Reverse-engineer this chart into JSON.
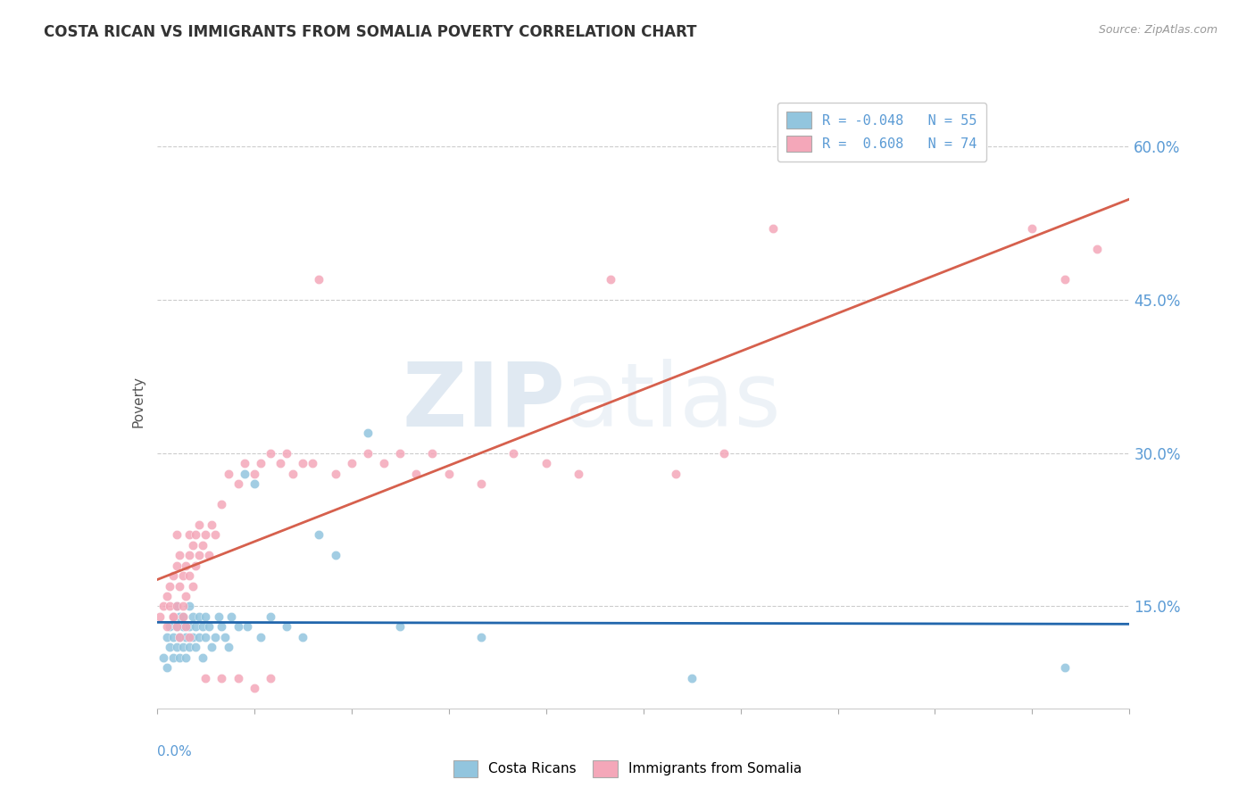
{
  "title": "COSTA RICAN VS IMMIGRANTS FROM SOMALIA POVERTY CORRELATION CHART",
  "source": "Source: ZipAtlas.com",
  "ylabel": "Poverty",
  "yticks": [
    "15.0%",
    "30.0%",
    "45.0%",
    "60.0%"
  ],
  "ytick_vals": [
    0.15,
    0.3,
    0.45,
    0.6
  ],
  "xlim": [
    0.0,
    0.3
  ],
  "ylim": [
    0.05,
    0.65
  ],
  "color_blue": "#92c5de",
  "color_pink": "#f4a7b9",
  "color_line_blue": "#2166ac",
  "color_line_pink": "#d6604d",
  "watermark_zip": "ZIP",
  "watermark_atlas": "atlas",
  "blue_scatter_x": [
    0.002,
    0.003,
    0.003,
    0.004,
    0.004,
    0.005,
    0.005,
    0.005,
    0.006,
    0.006,
    0.006,
    0.007,
    0.007,
    0.007,
    0.008,
    0.008,
    0.008,
    0.009,
    0.009,
    0.01,
    0.01,
    0.01,
    0.011,
    0.011,
    0.012,
    0.012,
    0.013,
    0.013,
    0.014,
    0.014,
    0.015,
    0.015,
    0.016,
    0.017,
    0.018,
    0.019,
    0.02,
    0.021,
    0.022,
    0.023,
    0.025,
    0.027,
    0.028,
    0.03,
    0.032,
    0.035,
    0.04,
    0.045,
    0.05,
    0.055,
    0.065,
    0.075,
    0.1,
    0.165,
    0.28
  ],
  "blue_scatter_y": [
    0.1,
    0.12,
    0.09,
    0.11,
    0.13,
    0.12,
    0.14,
    0.1,
    0.13,
    0.11,
    0.15,
    0.12,
    0.14,
    0.1,
    0.13,
    0.11,
    0.14,
    0.12,
    0.1,
    0.13,
    0.11,
    0.15,
    0.12,
    0.14,
    0.13,
    0.11,
    0.12,
    0.14,
    0.13,
    0.1,
    0.14,
    0.12,
    0.13,
    0.11,
    0.12,
    0.14,
    0.13,
    0.12,
    0.11,
    0.14,
    0.13,
    0.28,
    0.13,
    0.27,
    0.12,
    0.14,
    0.13,
    0.12,
    0.22,
    0.2,
    0.32,
    0.13,
    0.12,
    0.08,
    0.09
  ],
  "pink_scatter_x": [
    0.001,
    0.002,
    0.003,
    0.003,
    0.004,
    0.004,
    0.005,
    0.005,
    0.006,
    0.006,
    0.006,
    0.007,
    0.007,
    0.008,
    0.008,
    0.009,
    0.009,
    0.01,
    0.01,
    0.01,
    0.011,
    0.011,
    0.012,
    0.012,
    0.013,
    0.013,
    0.014,
    0.015,
    0.016,
    0.017,
    0.018,
    0.02,
    0.022,
    0.025,
    0.027,
    0.03,
    0.032,
    0.035,
    0.038,
    0.04,
    0.042,
    0.045,
    0.048,
    0.05,
    0.055,
    0.06,
    0.065,
    0.07,
    0.075,
    0.08,
    0.085,
    0.09,
    0.1,
    0.11,
    0.12,
    0.13,
    0.14,
    0.16,
    0.175,
    0.19,
    0.005,
    0.006,
    0.007,
    0.008,
    0.009,
    0.01,
    0.015,
    0.02,
    0.025,
    0.03,
    0.035,
    0.27,
    0.28,
    0.29
  ],
  "pink_scatter_y": [
    0.14,
    0.15,
    0.16,
    0.13,
    0.15,
    0.17,
    0.14,
    0.18,
    0.19,
    0.22,
    0.15,
    0.2,
    0.17,
    0.18,
    0.15,
    0.19,
    0.16,
    0.2,
    0.18,
    0.22,
    0.21,
    0.17,
    0.22,
    0.19,
    0.23,
    0.2,
    0.21,
    0.22,
    0.2,
    0.23,
    0.22,
    0.25,
    0.28,
    0.27,
    0.29,
    0.28,
    0.29,
    0.3,
    0.29,
    0.3,
    0.28,
    0.29,
    0.29,
    0.47,
    0.28,
    0.29,
    0.3,
    0.29,
    0.3,
    0.28,
    0.3,
    0.28,
    0.27,
    0.3,
    0.29,
    0.28,
    0.47,
    0.28,
    0.3,
    0.52,
    0.14,
    0.13,
    0.12,
    0.14,
    0.13,
    0.12,
    0.08,
    0.08,
    0.08,
    0.07,
    0.08,
    0.52,
    0.47,
    0.5
  ]
}
